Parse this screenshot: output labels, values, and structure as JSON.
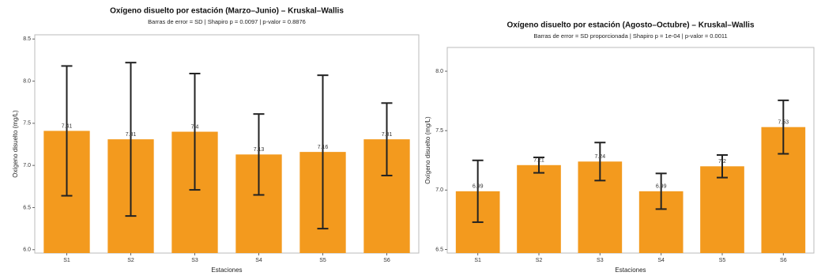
{
  "chart_data": [
    {
      "type": "bar",
      "title": "Oxígeno disuelto por estación (Marzo–Junio) – Kruskal–Wallis",
      "subtitle": "Barras de error = SD | Shapiro p = 0.0097 | p-valor = 0.8876",
      "x_label": "Estaciones",
      "y_label": "Oxígeno disuelto (mg/L)",
      "categories": [
        "S1",
        "S2",
        "S3",
        "S4",
        "S5",
        "S6"
      ],
      "values": [
        7.41,
        7.31,
        7.4,
        7.13,
        7.16,
        7.31
      ],
      "errors": [
        0.77,
        0.91,
        0.69,
        0.48,
        0.91,
        0.43
      ],
      "color": "#f39a1e",
      "ylim": [
        5.96,
        8.55
      ],
      "yticks": [
        {
          "value": 6,
          "label": "6.0"
        },
        6.5,
        {
          "value": 7,
          "label": "7.0"
        },
        7.5,
        {
          "value": 8,
          "label": "8.0"
        },
        8.5
      ]
    },
    {
      "type": "bar",
      "title": "Oxígeno disuelto por estación (Agosto–Octubre) – Kruskal–Wallis",
      "subtitle": "Barras de error = SD proporcionada | Shapiro p = 1e-04 | p-valor = 0.0011",
      "x_label": "Estaciones",
      "y_label": "Oxígeno disuelto (mg/L)",
      "categories": [
        "S1",
        "S2",
        "S3",
        "S4",
        "S5",
        "S6"
      ],
      "values": [
        6.99,
        7.21,
        7.24,
        6.99,
        7.2,
        7.53
      ],
      "errors": [
        0.26,
        0.065,
        0.16,
        0.15,
        0.095,
        0.225
      ],
      "color": "#f39a1e",
      "ylim": [
        6.47,
        8.2
      ],
      "yticks": [
        6.5,
        {
          "value": 7,
          "label": "7.0"
        },
        7.5,
        {
          "value": 8,
          "label": "8.0"
        }
      ]
    }
  ]
}
